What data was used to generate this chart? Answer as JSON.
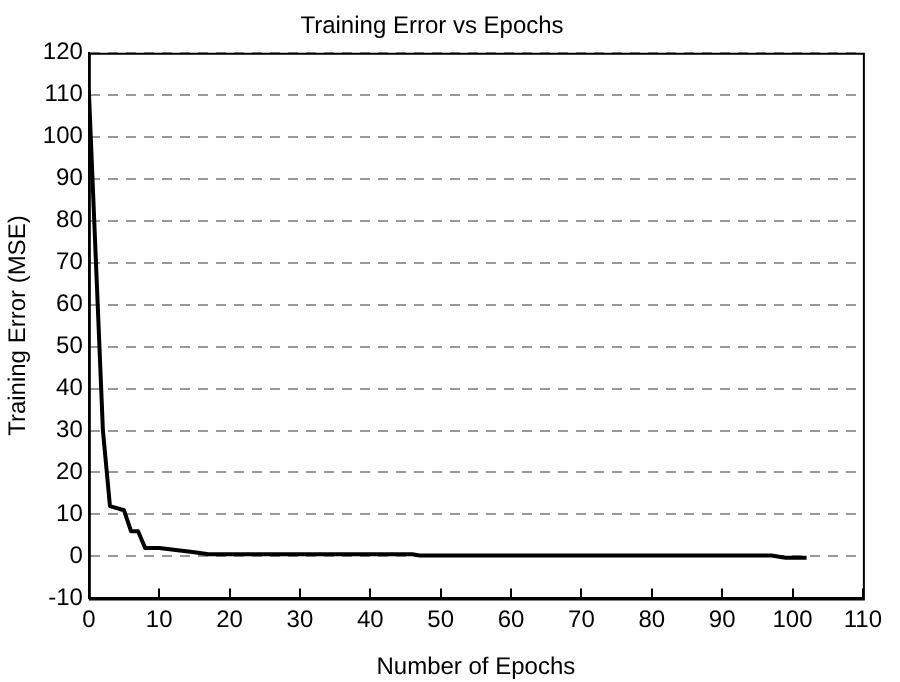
{
  "chart_data": {
    "type": "line",
    "title": "Training Error vs Epochs",
    "xlabel": "Number of Epochs",
    "ylabel": "Training Error (MSE)",
    "x": [
      0,
      2,
      3,
      5,
      6,
      7,
      8,
      10,
      15,
      17,
      46,
      47,
      97,
      99,
      102
    ],
    "series": [
      {
        "color": "#000000",
        "values": [
          111,
          30,
          12,
          11,
          6,
          6,
          2,
          2,
          1,
          0.5,
          0.5,
          0.2,
          0.2,
          -0.3,
          -0.3
        ]
      }
    ],
    "xlim": [
      0,
      110
    ],
    "xticks": [
      0,
      10,
      20,
      30,
      40,
      50,
      60,
      70,
      80,
      90,
      100,
      110
    ],
    "ylim": [
      -10,
      120
    ],
    "yticks": [
      -10,
      0,
      10,
      20,
      30,
      40,
      50,
      60,
      70,
      80,
      90,
      100,
      110,
      120
    ],
    "grid": "y",
    "marker": "none",
    "line_style": "solid",
    "legend": false
  }
}
